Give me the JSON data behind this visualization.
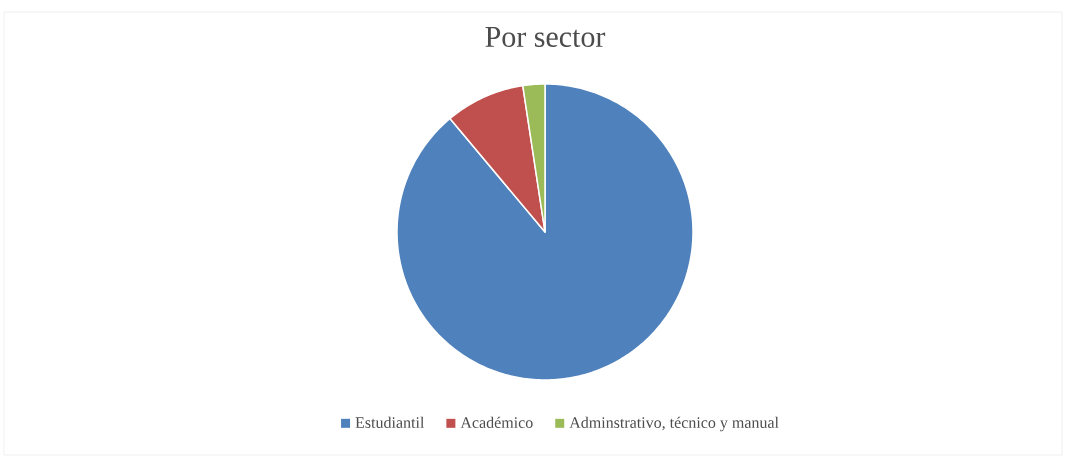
{
  "chart_data": {
    "type": "pie",
    "title": "Por sector",
    "categories": [
      "Estudiantil",
      "Académico",
      "Adminstrativo, técnico y manual"
    ],
    "values": [
      88.9,
      8.7,
      2.4
    ],
    "colors": [
      "#4f81bd",
      "#c0504d",
      "#9bbb59"
    ],
    "legend": "bottom"
  }
}
